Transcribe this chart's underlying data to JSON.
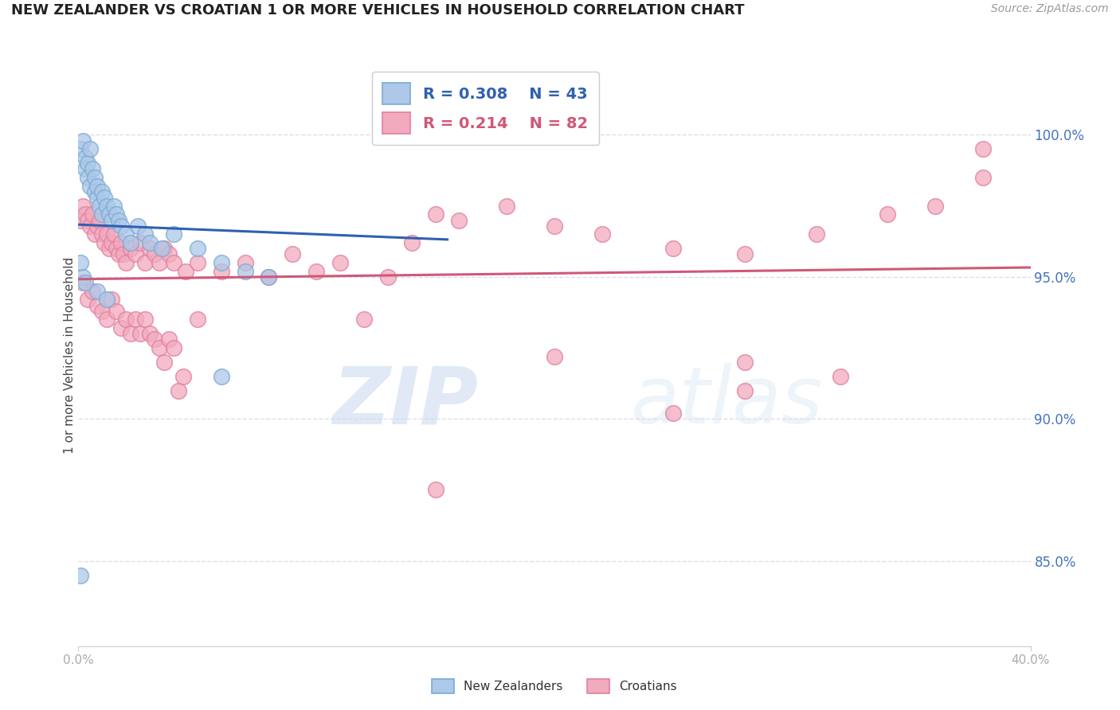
{
  "title": "NEW ZEALANDER VS CROATIAN 1 OR MORE VEHICLES IN HOUSEHOLD CORRELATION CHART",
  "source": "Source: ZipAtlas.com",
  "ylabel": "1 or more Vehicles in Household",
  "nz_color": "#adc8e8",
  "cr_color": "#f2aabe",
  "nz_edge": "#7aaad4",
  "cr_edge": "#e080a0",
  "trend_nz_color": "#3060b0",
  "trend_cr_color": "#d05878",
  "legend_r_nz": "R = 0.308",
  "legend_n_nz": "N = 43",
  "legend_r_cr": "R = 0.214",
  "legend_n_cr": "N = 82",
  "watermark_zip": "ZIP",
  "watermark_atlas": "atlas",
  "xlim": [
    0.0,
    0.4
  ],
  "ylim": [
    82.0,
    102.5
  ],
  "yticks": [
    85.0,
    90.0,
    95.0,
    100.0
  ],
  "ytick_labels": [
    "85.0%",
    "90.0%",
    "95.0%",
    "100.0%"
  ],
  "grid_color": "#ddddee",
  "title_fontsize": 13,
  "source_fontsize": 10,
  "ytick_color": "#4472c4",
  "xtick_color": "#aaaaaa",
  "nz_x": [
    0.001,
    0.002,
    0.003,
    0.003,
    0.004,
    0.004,
    0.005,
    0.005,
    0.006,
    0.007,
    0.007,
    0.008,
    0.008,
    0.009,
    0.01,
    0.01,
    0.011,
    0.012,
    0.013,
    0.014,
    0.015,
    0.016,
    0.017,
    0.018,
    0.02,
    0.022,
    0.025,
    0.028,
    0.03,
    0.035,
    0.04,
    0.05,
    0.06,
    0.07,
    0.08,
    0.001,
    0.002,
    0.003,
    0.008,
    0.012,
    0.001,
    0.06,
    0.155
  ],
  "nz_y": [
    99.5,
    99.8,
    99.2,
    98.8,
    99.0,
    98.5,
    99.5,
    98.2,
    98.8,
    98.5,
    98.0,
    97.8,
    98.2,
    97.5,
    98.0,
    97.2,
    97.8,
    97.5,
    97.2,
    97.0,
    97.5,
    97.2,
    97.0,
    96.8,
    96.5,
    96.2,
    96.8,
    96.5,
    96.2,
    96.0,
    96.5,
    96.0,
    95.5,
    95.2,
    95.0,
    95.5,
    95.0,
    94.8,
    94.5,
    94.2,
    84.5,
    91.5,
    100.2
  ],
  "cr_x": [
    0.001,
    0.002,
    0.003,
    0.004,
    0.005,
    0.006,
    0.007,
    0.008,
    0.009,
    0.01,
    0.011,
    0.012,
    0.013,
    0.014,
    0.015,
    0.016,
    0.017,
    0.018,
    0.019,
    0.02,
    0.022,
    0.024,
    0.026,
    0.028,
    0.03,
    0.032,
    0.034,
    0.036,
    0.038,
    0.04,
    0.045,
    0.05,
    0.06,
    0.07,
    0.08,
    0.09,
    0.1,
    0.11,
    0.12,
    0.13,
    0.14,
    0.15,
    0.16,
    0.18,
    0.2,
    0.22,
    0.25,
    0.28,
    0.31,
    0.34,
    0.002,
    0.004,
    0.006,
    0.008,
    0.01,
    0.012,
    0.014,
    0.016,
    0.018,
    0.02,
    0.022,
    0.024,
    0.026,
    0.028,
    0.03,
    0.032,
    0.034,
    0.036,
    0.038,
    0.04,
    0.042,
    0.044,
    0.2,
    0.25,
    0.28,
    0.32,
    0.36,
    0.38,
    0.15,
    0.28,
    0.05,
    0.38
  ],
  "cr_y": [
    97.0,
    97.5,
    97.2,
    97.0,
    96.8,
    97.2,
    96.5,
    96.8,
    97.0,
    96.5,
    96.2,
    96.5,
    96.0,
    96.2,
    96.5,
    96.0,
    95.8,
    96.2,
    95.8,
    95.5,
    96.0,
    95.8,
    96.2,
    95.5,
    96.0,
    95.8,
    95.5,
    96.0,
    95.8,
    95.5,
    95.2,
    95.5,
    95.2,
    95.5,
    95.0,
    95.8,
    95.2,
    95.5,
    93.5,
    95.0,
    96.2,
    97.2,
    97.0,
    97.5,
    96.8,
    96.5,
    96.0,
    95.8,
    96.5,
    97.2,
    94.8,
    94.2,
    94.5,
    94.0,
    93.8,
    93.5,
    94.2,
    93.8,
    93.2,
    93.5,
    93.0,
    93.5,
    93.0,
    93.5,
    93.0,
    92.8,
    92.5,
    92.0,
    92.8,
    92.5,
    91.0,
    91.5,
    92.2,
    90.2,
    91.0,
    91.5,
    97.5,
    98.5,
    87.5,
    92.0,
    93.5,
    99.5
  ]
}
